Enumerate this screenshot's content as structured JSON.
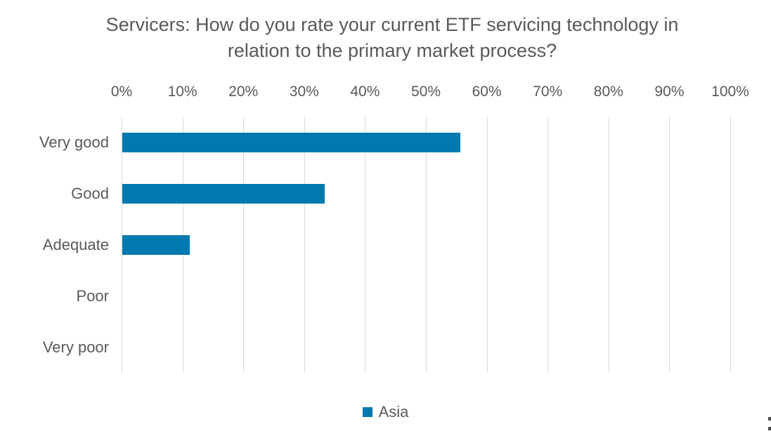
{
  "chart_data": {
    "type": "bar",
    "orientation": "horizontal",
    "title": "Servicers: How do you rate your current ETF servicing technology in relation to the primary market process?",
    "categories": [
      "Very good",
      "Good",
      "Adequate",
      "Poor",
      "Very poor"
    ],
    "series": [
      {
        "name": "Asia",
        "values": [
          55.6,
          33.3,
          11.1,
          0,
          0
        ]
      }
    ],
    "xlim": [
      0,
      100
    ],
    "x_ticks": [
      "0%",
      "10%",
      "20%",
      "30%",
      "40%",
      "50%",
      "60%",
      "70%",
      "80%",
      "90%",
      "100%"
    ],
    "x_tick_values": [
      0,
      10,
      20,
      30,
      40,
      50,
      60,
      70,
      80,
      90,
      100
    ],
    "grid": "vertical",
    "gridline_color": "#D9D9D9",
    "bar_color": "#0079B1",
    "text_color": "#595959",
    "legend_position": "bottom",
    "legend_entries": [
      "Asia"
    ]
  }
}
